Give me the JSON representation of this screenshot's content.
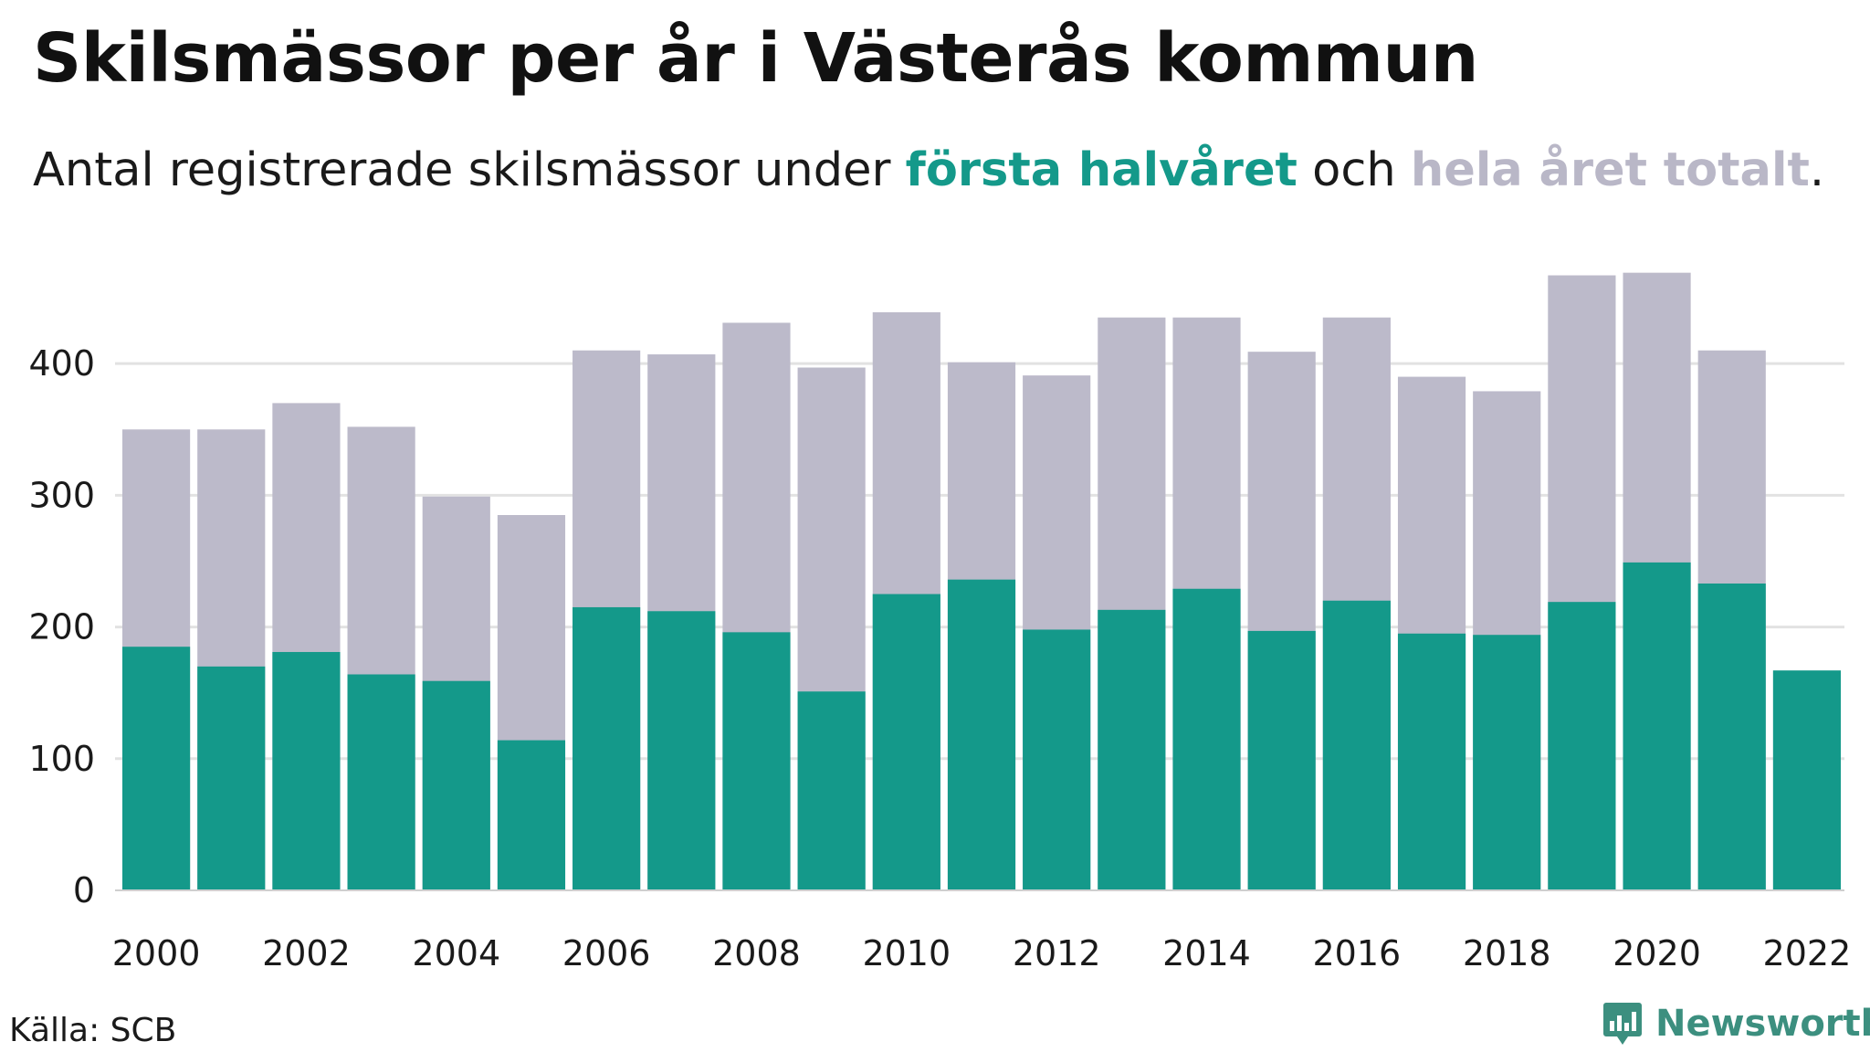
{
  "title": "Skilsmässor per år i Västerås kommun",
  "subtitle": {
    "prefix": "Antal registrerade skilsmässor under ",
    "first_half": "första halvåret",
    "middle": " och ",
    "full_year": "hela året totalt",
    "suffix": "."
  },
  "source": "Källa: SCB",
  "brand": "Newsworthy",
  "colors": {
    "first_half": "#14998a",
    "full_year": "#bcbaca",
    "grid": "#e2e2e2",
    "brand": "#3c8f7f"
  },
  "chart_data": {
    "type": "bar",
    "categories": [
      "2000",
      "2001",
      "2002",
      "2003",
      "2004",
      "2005",
      "2006",
      "2007",
      "2008",
      "2009",
      "2010",
      "2011",
      "2012",
      "2013",
      "2014",
      "2015",
      "2016",
      "2017",
      "2018",
      "2019",
      "2020",
      "2021",
      "2022"
    ],
    "x_tick_labels": [
      "2000",
      "2002",
      "2004",
      "2006",
      "2008",
      "2010",
      "2012",
      "2014",
      "2016",
      "2018",
      "2020",
      "2022"
    ],
    "series": [
      {
        "name": "hela året totalt",
        "color": "#bcbaca",
        "values": [
          350,
          350,
          370,
          352,
          299,
          285,
          410,
          407,
          431,
          397,
          439,
          401,
          391,
          435,
          435,
          409,
          435,
          390,
          379,
          467,
          469,
          410,
          null
        ]
      },
      {
        "name": "första halvåret",
        "color": "#14998a",
        "values": [
          185,
          170,
          181,
          164,
          159,
          114,
          215,
          212,
          196,
          151,
          225,
          236,
          198,
          213,
          229,
          197,
          220,
          195,
          194,
          219,
          249,
          233,
          167
        ]
      }
    ],
    "overlay": true,
    "ylim": [
      0,
      475
    ],
    "y_ticks": [
      0,
      100,
      200,
      300,
      400
    ],
    "grid": true
  }
}
